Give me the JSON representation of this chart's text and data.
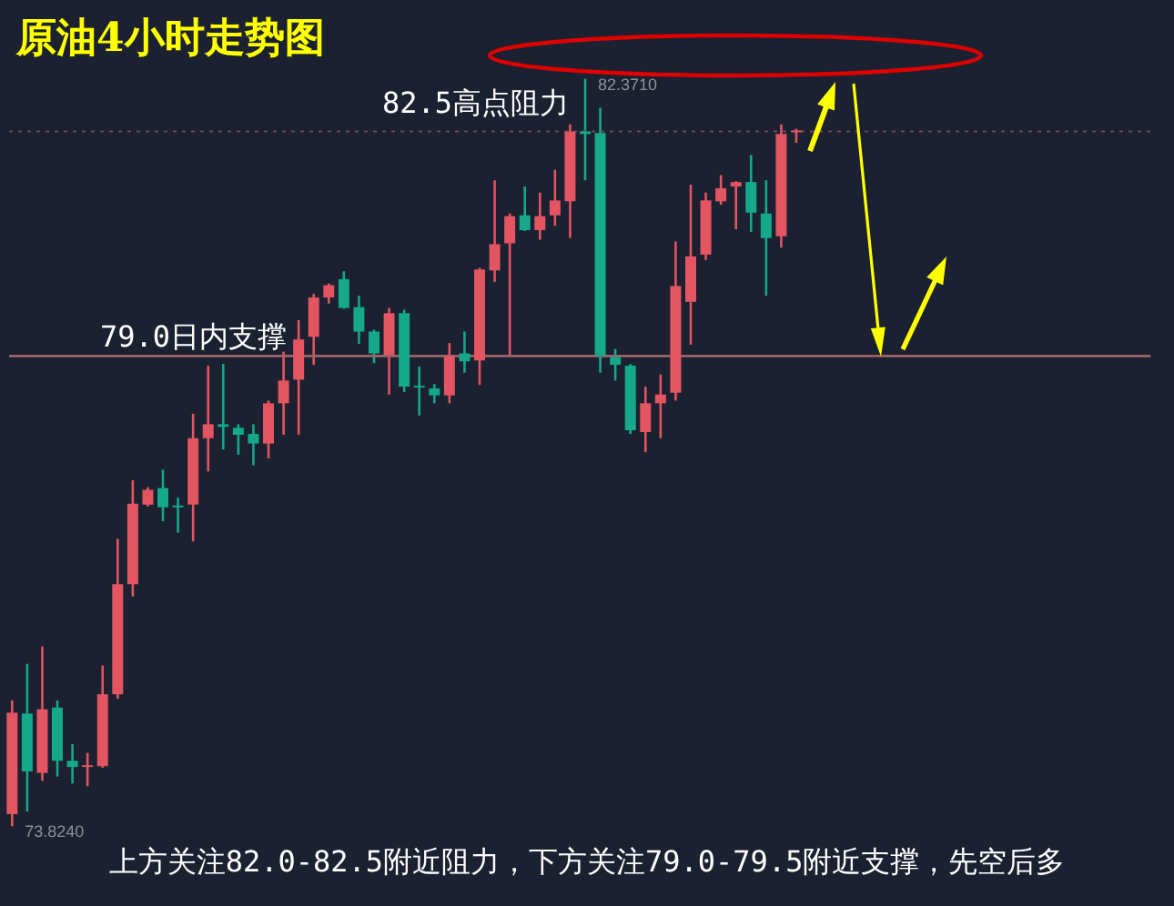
{
  "chart_data": {
    "type": "candlestick",
    "title": "原油4小时走势图",
    "categories": [
      null,
      null,
      null,
      null,
      null,
      null,
      null,
      null,
      null,
      null,
      null,
      null,
      null,
      null,
      null,
      null,
      null,
      null,
      null,
      null,
      null,
      null,
      null,
      null,
      null,
      null,
      null,
      null,
      null,
      null,
      null,
      null,
      null,
      null,
      null,
      null,
      null,
      null,
      null,
      null,
      null,
      null,
      null,
      null,
      null,
      null,
      null,
      null,
      null,
      null,
      null,
      null,
      null
    ],
    "ohlc": [
      [
        73.96,
        75.26,
        73.824,
        75.12
      ],
      [
        75.11,
        75.68,
        73.99,
        74.45
      ],
      [
        74.43,
        75.88,
        74.34,
        75.16
      ],
      [
        75.18,
        75.26,
        74.39,
        74.57
      ],
      [
        74.57,
        74.76,
        74.31,
        74.5
      ],
      [
        74.5,
        74.66,
        74.28,
        74.52
      ],
      [
        74.51,
        75.66,
        74.49,
        75.33
      ],
      [
        75.33,
        77.11,
        75.28,
        76.59
      ],
      [
        76.59,
        77.78,
        76.45,
        77.51
      ],
      [
        77.5,
        77.7,
        77.48,
        77.67
      ],
      [
        77.69,
        77.9,
        77.31,
        77.47
      ],
      [
        77.49,
        77.58,
        77.18,
        77.47
      ],
      [
        77.5,
        78.54,
        77.08,
        78.26
      ],
      [
        78.26,
        79.09,
        77.88,
        78.42
      ],
      [
        78.42,
        79.11,
        78.13,
        78.39
      ],
      [
        78.38,
        78.42,
        78.07,
        78.3
      ],
      [
        78.31,
        78.42,
        77.95,
        78.2
      ],
      [
        78.2,
        78.69,
        78.03,
        78.66
      ],
      [
        78.66,
        79.25,
        78.3,
        78.92
      ],
      [
        78.93,
        79.61,
        78.3,
        79.39
      ],
      [
        79.42,
        79.91,
        79.1,
        79.87
      ],
      [
        79.87,
        80.03,
        79.8,
        80.01
      ],
      [
        80.08,
        80.17,
        79.74,
        79.75
      ],
      [
        79.76,
        79.89,
        79.34,
        79.48
      ],
      [
        79.48,
        79.5,
        79.12,
        79.23
      ],
      [
        79.21,
        79.75,
        78.76,
        79.69
      ],
      [
        79.69,
        79.73,
        78.79,
        78.85
      ],
      [
        78.86,
        79.08,
        78.52,
        78.84
      ],
      [
        78.83,
        78.88,
        78.66,
        78.75
      ],
      [
        78.75,
        79.35,
        78.66,
        79.2
      ],
      [
        79.23,
        79.48,
        79.01,
        79.14
      ],
      [
        79.15,
        80.21,
        78.87,
        80.19
      ],
      [
        80.18,
        81.21,
        80.05,
        80.48
      ],
      [
        80.49,
        80.83,
        79.21,
        80.8
      ],
      [
        80.81,
        81.14,
        80.63,
        80.64
      ],
      [
        80.64,
        81.07,
        80.53,
        80.8
      ],
      [
        80.81,
        81.33,
        80.69,
        80.98
      ],
      [
        80.97,
        81.85,
        80.55,
        81.77
      ],
      [
        81.77,
        82.371,
        81.21,
        81.74
      ],
      [
        81.75,
        82.04,
        79.01,
        79.2
      ],
      [
        79.19,
        79.28,
        78.92,
        79.1
      ],
      [
        79.09,
        79.11,
        78.31,
        78.35
      ],
      [
        78.33,
        78.85,
        78.1,
        78.66
      ],
      [
        78.66,
        78.99,
        78.26,
        78.76
      ],
      [
        78.78,
        80.51,
        78.69,
        80.0
      ],
      [
        79.82,
        81.16,
        79.33,
        80.34
      ],
      [
        80.36,
        81.07,
        80.3,
        80.98
      ],
      [
        80.97,
        81.27,
        80.93,
        81.12
      ],
      [
        81.14,
        81.2,
        80.65,
        81.19
      ],
      [
        81.19,
        81.5,
        80.62,
        80.84
      ],
      [
        80.83,
        81.21,
        79.89,
        80.55
      ],
      [
        80.57,
        81.85,
        80.44,
        81.74
      ],
      [
        81.76,
        81.8,
        81.64,
        81.78
      ]
    ],
    "colors": [
      "#e35561",
      "#15a88a",
      "#e35561",
      "#15a88a",
      "#15a88a",
      "#e35561",
      "#e35561",
      "#e35561",
      "#e35561",
      "#e35561",
      "#15a88a",
      "#15a88a",
      "#e35561",
      "#e35561",
      "#15a88a",
      "#15a88a",
      "#15a88a",
      "#e35561",
      "#e35561",
      "#e35561",
      "#e35561",
      "#e35561",
      "#15a88a",
      "#15a88a",
      "#15a88a",
      "#e35561",
      "#15a88a",
      "#15a88a",
      "#15a88a",
      "#e35561",
      "#15a88a",
      "#e35561",
      "#e35561",
      "#e35561",
      "#15a88a",
      "#e35561",
      "#e35561",
      "#e35561",
      "#15a88a",
      "#15a88a",
      "#15a88a",
      "#15a88a",
      "#e35561",
      "#e35561",
      "#e35561",
      "#e35561",
      "#e35561",
      "#e35561",
      "#e35561",
      "#15a88a",
      "#15a88a",
      "#e35561",
      "#e35561"
    ],
    "ref_lines": [
      {
        "axis": "y",
        "value": 81.77,
        "line_style": "dotted",
        "color": "#6a4c5a"
      },
      {
        "axis": "y",
        "value": 79.2,
        "label": "79.0日内支撑",
        "color": "#9e6269"
      }
    ],
    "annotations": [
      "82.5高点阻力",
      "82.3710",
      "73.8240",
      "上方关注82.0-82.5附近阻力，下方关注79.0-79.5附近支撑，先空后多"
    ],
    "tick_labels": false
  }
}
